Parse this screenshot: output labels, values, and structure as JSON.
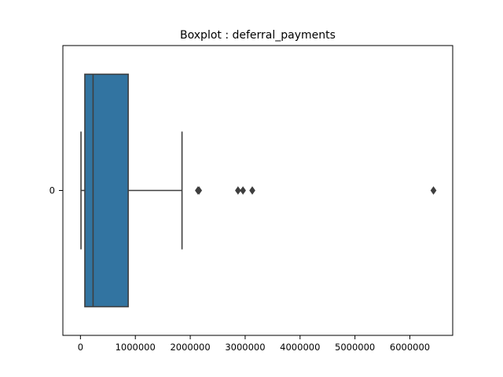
{
  "chart_data": {
    "type": "boxplot",
    "orientation": "horizontal",
    "title": "Boxplot : deferral_payments",
    "xlabel": "",
    "ylabel": "",
    "categories": [
      "0"
    ],
    "xlim": [
      -320000,
      6780000
    ],
    "xticks": [
      0,
      1000000,
      2000000,
      3000000,
      4000000,
      5000000,
      6000000
    ],
    "xtick_labels": [
      "0",
      "1000000",
      "2000000",
      "3000000",
      "4000000",
      "5000000",
      "6000000"
    ],
    "box": {
      "whisker_low": 10000,
      "q1": 80000,
      "median": 230000,
      "q3": 870000,
      "whisker_high": 1850000
    },
    "outliers": [
      2140000,
      2160000,
      2870000,
      2960000,
      3130000,
      6430000
    ],
    "grid": false,
    "colors": {
      "box_fill": "#3274a1",
      "lines": "#3f3f3f",
      "axes": "#000000"
    }
  }
}
